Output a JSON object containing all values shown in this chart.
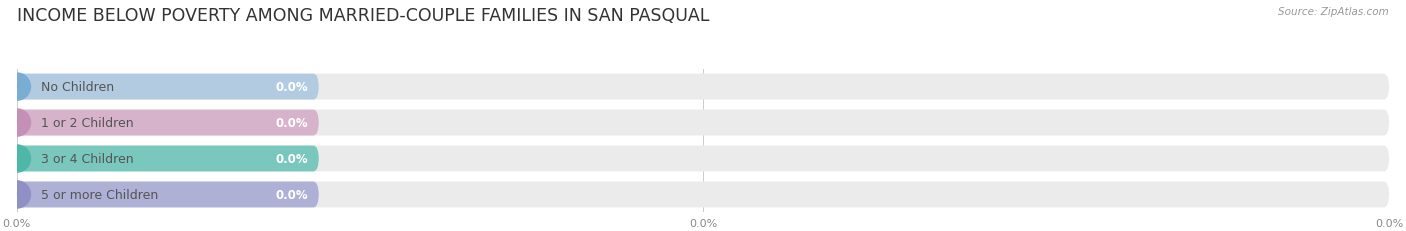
{
  "title": "INCOME BELOW POVERTY AMONG MARRIED-COUPLE FAMILIES IN SAN PASQUAL",
  "source": "Source: ZipAtlas.com",
  "categories": [
    "No Children",
    "1 or 2 Children",
    "3 or 4 Children",
    "5 or more Children"
  ],
  "values": [
    0.0,
    0.0,
    0.0,
    0.0
  ],
  "bar_colors": [
    "#adc8e0",
    "#d4adc8",
    "#6dc4b8",
    "#a8aad4"
  ],
  "dot_colors": [
    "#7aadd4",
    "#c490b8",
    "#4db8a8",
    "#9090c4"
  ],
  "background_color": "#ffffff",
  "bar_bg_color": "#ebebeb",
  "xlim": [
    0,
    100
  ],
  "title_fontsize": 12.5,
  "label_fontsize": 9,
  "value_fontsize": 8.5,
  "source_fontsize": 7.5,
  "fig_width": 14.06,
  "fig_height": 2.32
}
